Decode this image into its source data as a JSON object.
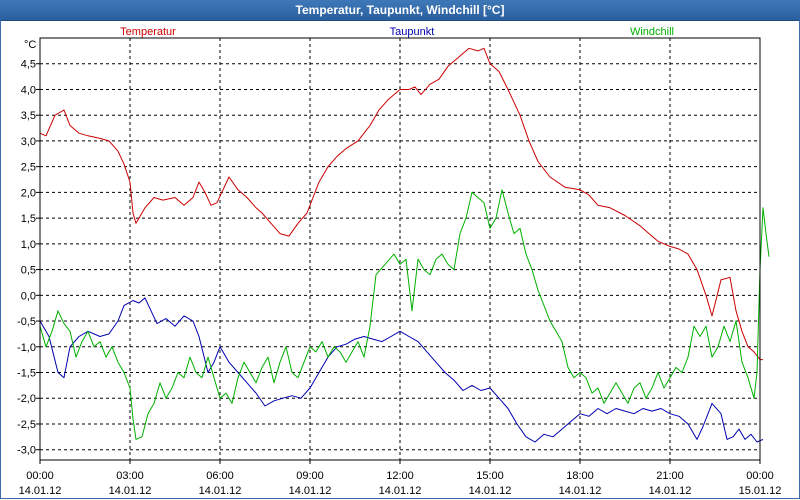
{
  "window": {
    "title": "Temperatur, Taupunkt, Windchill [°C]"
  },
  "chart_data": {
    "type": "line",
    "title": "Temperatur, Taupunkt, Windchill [°C]",
    "ylabel": "°C",
    "ylim": [
      -3.2,
      5.0
    ],
    "yticks": [
      -3.0,
      -2.5,
      -2.0,
      -1.5,
      -1.0,
      -0.5,
      0.0,
      0.5,
      1.0,
      1.5,
      2.0,
      2.5,
      3.0,
      3.5,
      4.0,
      4.5
    ],
    "ytick_labels": [
      "-3,0",
      "-2,5",
      "-2,0",
      "-1,5",
      "-1,0",
      "-0,5",
      "0,0",
      "0,5",
      "1,0",
      "1,5",
      "2,0",
      "2,5",
      "3,0",
      "3,5",
      "4,0",
      "4,5"
    ],
    "xlim": [
      0,
      24
    ],
    "x_unit": "hours from 14.01.12 00:00",
    "xticks": [
      0,
      3,
      6,
      9,
      12,
      15,
      18,
      21,
      24
    ],
    "xtick_times": [
      "00:00",
      "03:00",
      "06:00",
      "09:00",
      "12:00",
      "15:00",
      "18:00",
      "21:00",
      "00:00"
    ],
    "xtick_dates": [
      "14.01.12",
      "14.01.12",
      "14.01.12",
      "14.01.12",
      "14.01.12",
      "14.01.12",
      "14.01.12",
      "14.01.12",
      "15.01.12"
    ],
    "grid": true,
    "legend_position": "top",
    "series": [
      {
        "name": "Temperatur",
        "color": "#cc0000",
        "points": [
          [
            0,
            3.15
          ],
          [
            0.2,
            3.1
          ],
          [
            0.5,
            3.5
          ],
          [
            0.8,
            3.6
          ],
          [
            1,
            3.3
          ],
          [
            1.3,
            3.15
          ],
          [
            1.6,
            3.1
          ],
          [
            2,
            3.05
          ],
          [
            2.3,
            3.0
          ],
          [
            2.6,
            2.8
          ],
          [
            2.8,
            2.55
          ],
          [
            3,
            2.2
          ],
          [
            3.1,
            1.6
          ],
          [
            3.2,
            1.4
          ],
          [
            3.5,
            1.7
          ],
          [
            3.8,
            1.9
          ],
          [
            4.1,
            1.85
          ],
          [
            4.5,
            1.9
          ],
          [
            4.8,
            1.75
          ],
          [
            5.1,
            1.9
          ],
          [
            5.3,
            2.2
          ],
          [
            5.5,
            2.0
          ],
          [
            5.7,
            1.75
          ],
          [
            5.9,
            1.8
          ],
          [
            6.1,
            2.05
          ],
          [
            6.3,
            2.3
          ],
          [
            6.6,
            2.05
          ],
          [
            6.9,
            1.9
          ],
          [
            7.2,
            1.7
          ],
          [
            7.4,
            1.6
          ],
          [
            7.7,
            1.4
          ],
          [
            8.0,
            1.2
          ],
          [
            8.3,
            1.15
          ],
          [
            8.6,
            1.4
          ],
          [
            8.9,
            1.6
          ],
          [
            9.1,
            1.9
          ],
          [
            9.3,
            2.2
          ],
          [
            9.6,
            2.5
          ],
          [
            9.9,
            2.7
          ],
          [
            10.2,
            2.85
          ],
          [
            10.6,
            3.0
          ],
          [
            11,
            3.3
          ],
          [
            11.3,
            3.6
          ],
          [
            11.6,
            3.8
          ],
          [
            12,
            4.0
          ],
          [
            12.3,
            4.0
          ],
          [
            12.5,
            4.05
          ],
          [
            12.7,
            3.9
          ],
          [
            13,
            4.1
          ],
          [
            13.3,
            4.2
          ],
          [
            13.6,
            4.45
          ],
          [
            14,
            4.65
          ],
          [
            14.3,
            4.8
          ],
          [
            14.6,
            4.75
          ],
          [
            14.8,
            4.8
          ],
          [
            15,
            4.5
          ],
          [
            15.3,
            4.35
          ],
          [
            15.6,
            4.0
          ],
          [
            16,
            3.5
          ],
          [
            16.3,
            3.0
          ],
          [
            16.6,
            2.6
          ],
          [
            17,
            2.3
          ],
          [
            17.5,
            2.1
          ],
          [
            18,
            2.05
          ],
          [
            18.3,
            1.95
          ],
          [
            18.6,
            1.75
          ],
          [
            19,
            1.7
          ],
          [
            19.5,
            1.55
          ],
          [
            20,
            1.35
          ],
          [
            20.3,
            1.2
          ],
          [
            20.6,
            1.05
          ],
          [
            21,
            0.95
          ],
          [
            21.3,
            0.9
          ],
          [
            21.6,
            0.8
          ],
          [
            21.9,
            0.5
          ],
          [
            22.2,
            0.0
          ],
          [
            22.4,
            -0.4
          ],
          [
            22.7,
            0.3
          ],
          [
            23.0,
            0.35
          ],
          [
            23.2,
            -0.3
          ],
          [
            23.4,
            -0.7
          ],
          [
            23.6,
            -1.0
          ],
          [
            23.8,
            -1.1
          ],
          [
            24,
            -1.25
          ],
          [
            24.1,
            -1.25
          ]
        ]
      },
      {
        "name": "Taupunkt",
        "color": "#0000b0",
        "points": [
          [
            0,
            -0.5
          ],
          [
            0.3,
            -0.8
          ],
          [
            0.6,
            -1.5
          ],
          [
            0.8,
            -1.6
          ],
          [
            1.0,
            -1.0
          ],
          [
            1.3,
            -0.8
          ],
          [
            1.6,
            -0.7
          ],
          [
            2.0,
            -0.8
          ],
          [
            2.3,
            -0.75
          ],
          [
            2.6,
            -0.5
          ],
          [
            2.8,
            -0.2
          ],
          [
            3.1,
            -0.1
          ],
          [
            3.3,
            -0.15
          ],
          [
            3.5,
            -0.05
          ],
          [
            3.7,
            -0.3
          ],
          [
            3.9,
            -0.55
          ],
          [
            4.2,
            -0.45
          ],
          [
            4.5,
            -0.6
          ],
          [
            4.8,
            -0.4
          ],
          [
            5.1,
            -0.5
          ],
          [
            5.3,
            -0.8
          ],
          [
            5.6,
            -1.5
          ],
          [
            5.8,
            -1.3
          ],
          [
            6.0,
            -1.0
          ],
          [
            6.3,
            -1.3
          ],
          [
            6.6,
            -1.5
          ],
          [
            6.9,
            -1.7
          ],
          [
            7.2,
            -1.9
          ],
          [
            7.5,
            -2.15
          ],
          [
            7.8,
            -2.05
          ],
          [
            8.1,
            -2.0
          ],
          [
            8.4,
            -1.95
          ],
          [
            8.7,
            -2.0
          ],
          [
            9.0,
            -1.8
          ],
          [
            9.3,
            -1.5
          ],
          [
            9.6,
            -1.2
          ],
          [
            9.9,
            -1.0
          ],
          [
            10.2,
            -0.95
          ],
          [
            10.5,
            -0.85
          ],
          [
            10.8,
            -0.8
          ],
          [
            11.1,
            -0.85
          ],
          [
            11.4,
            -0.9
          ],
          [
            11.7,
            -0.8
          ],
          [
            12.0,
            -0.7
          ],
          [
            12.3,
            -0.8
          ],
          [
            12.6,
            -0.9
          ],
          [
            12.9,
            -1.1
          ],
          [
            13.2,
            -1.3
          ],
          [
            13.5,
            -1.5
          ],
          [
            13.8,
            -1.65
          ],
          [
            14.1,
            -1.85
          ],
          [
            14.4,
            -1.75
          ],
          [
            14.7,
            -1.85
          ],
          [
            15.0,
            -1.8
          ],
          [
            15.3,
            -2.0
          ],
          [
            15.6,
            -2.2
          ],
          [
            15.9,
            -2.5
          ],
          [
            16.2,
            -2.75
          ],
          [
            16.5,
            -2.85
          ],
          [
            16.8,
            -2.7
          ],
          [
            17.1,
            -2.75
          ],
          [
            17.4,
            -2.6
          ],
          [
            17.7,
            -2.45
          ],
          [
            18.0,
            -2.3
          ],
          [
            18.3,
            -2.35
          ],
          [
            18.6,
            -2.2
          ],
          [
            18.9,
            -2.3
          ],
          [
            19.2,
            -2.2
          ],
          [
            19.5,
            -2.25
          ],
          [
            19.8,
            -2.3
          ],
          [
            20.1,
            -2.2
          ],
          [
            20.4,
            -2.25
          ],
          [
            20.7,
            -2.2
          ],
          [
            21.0,
            -2.3
          ],
          [
            21.3,
            -2.35
          ],
          [
            21.6,
            -2.5
          ],
          [
            21.9,
            -2.8
          ],
          [
            22.1,
            -2.55
          ],
          [
            22.4,
            -2.1
          ],
          [
            22.7,
            -2.3
          ],
          [
            22.9,
            -2.8
          ],
          [
            23.1,
            -2.75
          ],
          [
            23.3,
            -2.6
          ],
          [
            23.5,
            -2.8
          ],
          [
            23.7,
            -2.7
          ],
          [
            23.9,
            -2.85
          ],
          [
            24.1,
            -2.8
          ]
        ]
      },
      {
        "name": "Windchill",
        "color": "#00b000",
        "points": [
          [
            0,
            -0.6
          ],
          [
            0.2,
            -1.0
          ],
          [
            0.4,
            -0.7
          ],
          [
            0.6,
            -0.3
          ],
          [
            0.8,
            -0.55
          ],
          [
            1.0,
            -0.7
          ],
          [
            1.2,
            -1.2
          ],
          [
            1.4,
            -0.9
          ],
          [
            1.6,
            -0.7
          ],
          [
            1.8,
            -1.0
          ],
          [
            2.0,
            -0.9
          ],
          [
            2.2,
            -1.2
          ],
          [
            2.4,
            -1.0
          ],
          [
            2.6,
            -1.3
          ],
          [
            2.8,
            -1.5
          ],
          [
            3.0,
            -1.8
          ],
          [
            3.1,
            -2.4
          ],
          [
            3.2,
            -2.8
          ],
          [
            3.4,
            -2.75
          ],
          [
            3.6,
            -2.3
          ],
          [
            3.8,
            -2.1
          ],
          [
            4.0,
            -1.7
          ],
          [
            4.2,
            -2.0
          ],
          [
            4.4,
            -1.8
          ],
          [
            4.6,
            -1.5
          ],
          [
            4.8,
            -1.6
          ],
          [
            5.0,
            -1.2
          ],
          [
            5.2,
            -1.5
          ],
          [
            5.4,
            -1.6
          ],
          [
            5.6,
            -1.2
          ],
          [
            5.8,
            -1.6
          ],
          [
            6.0,
            -2.0
          ],
          [
            6.2,
            -1.9
          ],
          [
            6.4,
            -2.1
          ],
          [
            6.6,
            -1.6
          ],
          [
            6.8,
            -1.3
          ],
          [
            7.0,
            -1.5
          ],
          [
            7.2,
            -1.7
          ],
          [
            7.4,
            -1.4
          ],
          [
            7.6,
            -1.2
          ],
          [
            7.8,
            -1.7
          ],
          [
            8.0,
            -1.3
          ],
          [
            8.2,
            -1.0
          ],
          [
            8.4,
            -1.5
          ],
          [
            8.6,
            -1.6
          ],
          [
            8.8,
            -1.3
          ],
          [
            9.0,
            -1.0
          ],
          [
            9.2,
            -1.1
          ],
          [
            9.4,
            -0.9
          ],
          [
            9.6,
            -1.2
          ],
          [
            9.8,
            -1.0
          ],
          [
            10.0,
            -1.1
          ],
          [
            10.2,
            -1.3
          ],
          [
            10.4,
            -1.1
          ],
          [
            10.6,
            -0.9
          ],
          [
            10.8,
            -1.2
          ],
          [
            11.0,
            -0.6
          ],
          [
            11.2,
            0.4
          ],
          [
            11.5,
            0.6
          ],
          [
            11.8,
            0.8
          ],
          [
            12.0,
            0.6
          ],
          [
            12.2,
            0.7
          ],
          [
            12.4,
            -0.3
          ],
          [
            12.6,
            0.7
          ],
          [
            12.8,
            0.5
          ],
          [
            13.0,
            0.4
          ],
          [
            13.2,
            0.7
          ],
          [
            13.4,
            0.8
          ],
          [
            13.6,
            0.6
          ],
          [
            13.8,
            0.5
          ],
          [
            14.0,
            1.2
          ],
          [
            14.2,
            1.5
          ],
          [
            14.4,
            2.0
          ],
          [
            14.6,
            1.9
          ],
          [
            14.8,
            1.8
          ],
          [
            15.0,
            1.3
          ],
          [
            15.2,
            1.5
          ],
          [
            15.4,
            2.05
          ],
          [
            15.6,
            1.6
          ],
          [
            15.8,
            1.2
          ],
          [
            16.0,
            1.3
          ],
          [
            16.2,
            0.8
          ],
          [
            16.4,
            0.5
          ],
          [
            16.6,
            0.1
          ],
          [
            16.8,
            -0.2
          ],
          [
            17.0,
            -0.5
          ],
          [
            17.2,
            -0.7
          ],
          [
            17.4,
            -0.9
          ],
          [
            17.6,
            -1.4
          ],
          [
            17.8,
            -1.6
          ],
          [
            18.0,
            -1.5
          ],
          [
            18.2,
            -1.6
          ],
          [
            18.4,
            -1.9
          ],
          [
            18.6,
            -1.8
          ],
          [
            18.8,
            -2.1
          ],
          [
            19.0,
            -1.9
          ],
          [
            19.2,
            -1.7
          ],
          [
            19.4,
            -1.9
          ],
          [
            19.6,
            -2.1
          ],
          [
            19.8,
            -1.8
          ],
          [
            20.0,
            -1.7
          ],
          [
            20.2,
            -2.0
          ],
          [
            20.4,
            -1.8
          ],
          [
            20.6,
            -1.5
          ],
          [
            20.8,
            -1.8
          ],
          [
            21.0,
            -1.6
          ],
          [
            21.2,
            -1.4
          ],
          [
            21.4,
            -1.5
          ],
          [
            21.6,
            -1.2
          ],
          [
            21.8,
            -0.6
          ],
          [
            22.0,
            -0.8
          ],
          [
            22.2,
            -0.6
          ],
          [
            22.4,
            -1.2
          ],
          [
            22.6,
            -1.0
          ],
          [
            22.8,
            -0.6
          ],
          [
            23.0,
            -0.9
          ],
          [
            23.2,
            -0.5
          ],
          [
            23.4,
            -1.3
          ],
          [
            23.6,
            -1.6
          ],
          [
            23.8,
            -2.0
          ],
          [
            23.9,
            -1.5
          ],
          [
            24.0,
            0.5
          ],
          [
            24.1,
            1.7
          ],
          [
            24.2,
            1.2
          ],
          [
            24.3,
            0.75
          ]
        ]
      }
    ]
  }
}
